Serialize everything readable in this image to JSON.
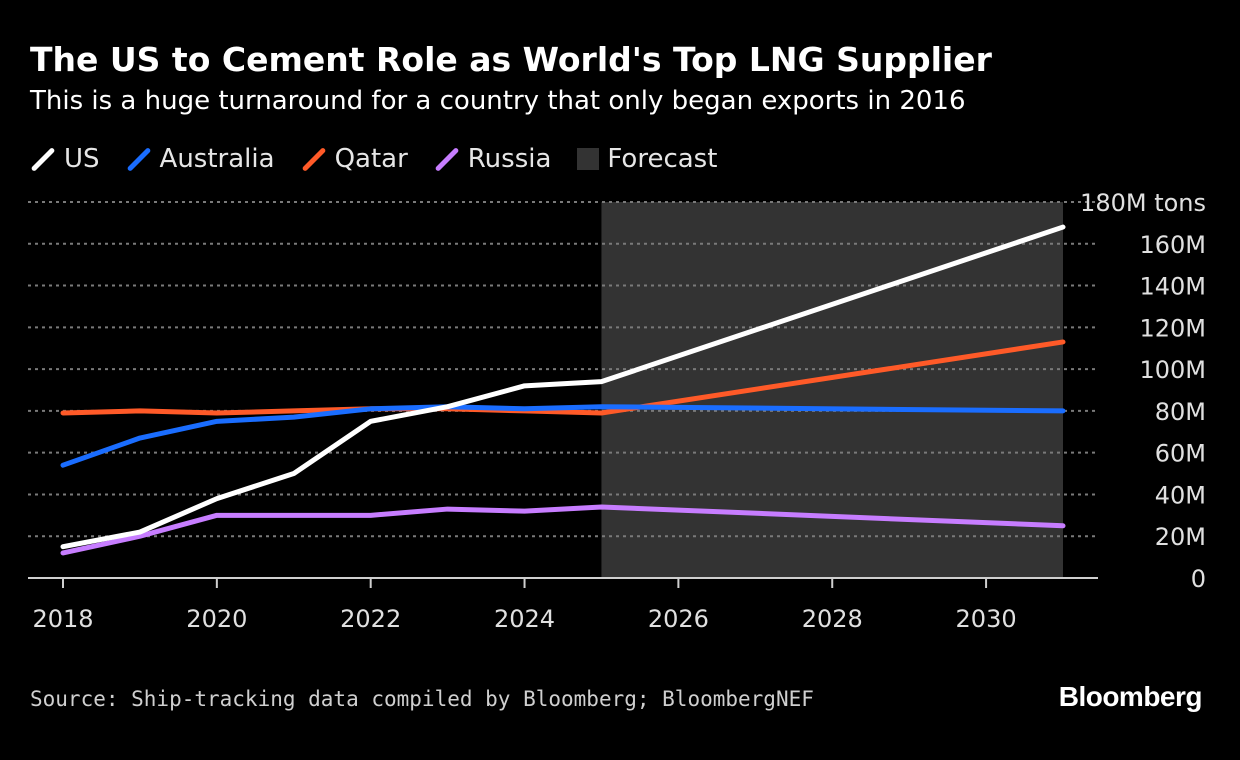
{
  "header": {
    "title": "The US to Cement Role as World's Top LNG Supplier",
    "subtitle": "This is a huge turnaround for a country that only began exports in 2016"
  },
  "legend": {
    "us": "US",
    "australia": "Australia",
    "qatar": "Qatar",
    "russia": "Russia",
    "forecast": "Forecast"
  },
  "footer": {
    "source": "Source: Ship-tracking data compiled by Bloomberg; BloombergNEF",
    "brand": "Bloomberg"
  },
  "colors": {
    "background": "#000000",
    "us": "#ffffff",
    "australia": "#1a6dff",
    "qatar": "#ff5a28",
    "russia": "#c77dff",
    "forecast": "#333333",
    "grid": "#7a7a7a",
    "axis_text": "#e0e0e0"
  },
  "chart_data": {
    "type": "line",
    "title": "The US to Cement Role as World's Top LNG Supplier",
    "subtitle": "This is a huge turnaround for a country that only began exports in 2016",
    "xlabel": "",
    "ylabel": "",
    "x": [
      2018,
      2019,
      2020,
      2021,
      2022,
      2023,
      2024,
      2025,
      2031
    ],
    "xlim": [
      2018,
      2031
    ],
    "ylim": [
      0,
      180
    ],
    "x_ticks": [
      "2018",
      "2020",
      "2022",
      "2024",
      "2026",
      "2028",
      "2030"
    ],
    "y_ticks": [
      "0",
      "20M",
      "40M",
      "60M",
      "80M",
      "100M",
      "120M",
      "140M",
      "160M",
      "180M tons"
    ],
    "forecast_range": [
      2025,
      2031
    ],
    "series": [
      {
        "name": "US",
        "color": "#ffffff",
        "values": [
          15,
          22,
          38,
          50,
          75,
          82,
          92,
          94,
          168
        ]
      },
      {
        "name": "Australia",
        "color": "#1a6dff",
        "values": [
          54,
          67,
          75,
          77,
          81,
          82,
          81,
          82,
          80
        ]
      },
      {
        "name": "Qatar",
        "color": "#ff5a28",
        "values": [
          79,
          80,
          79,
          80,
          81,
          81,
          80,
          79,
          113
        ]
      },
      {
        "name": "Russia",
        "color": "#c77dff",
        "values": [
          12,
          20,
          30,
          30,
          30,
          33,
          32,
          34,
          25
        ]
      }
    ],
    "grid": true,
    "legend_position": "top-left",
    "source": "Source: Ship-tracking data compiled by Bloomberg; BloombergNEF"
  }
}
